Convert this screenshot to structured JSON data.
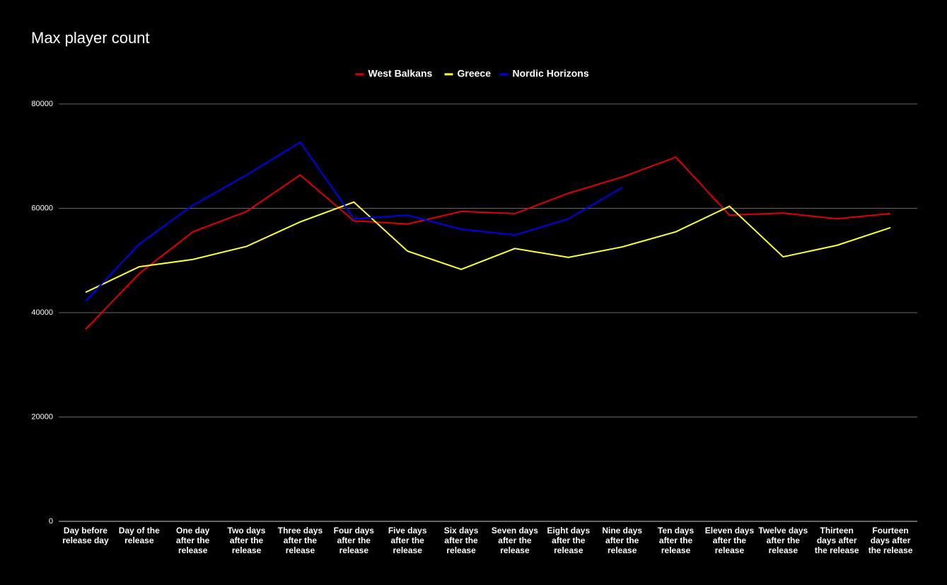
{
  "chart_data": {
    "type": "line",
    "title": "Max player count",
    "categories": [
      "Day before release day",
      "Day of the release",
      "One day after the release",
      "Two days after the release",
      "Three days after the release",
      "Four days after the release",
      "Five days after the release",
      "Six days after the release",
      "Seven days after the release",
      "Eight days after the release",
      "Nine days after the release",
      "Ten days after the release",
      "Eleven days after the release",
      "Twelve days after the release",
      "Thirteen days after the release",
      "Fourteen days after the release"
    ],
    "series": [
      {
        "name": "West Balkans",
        "color": "#e00000",
        "values": [
          36800,
          47500,
          55500,
          59400,
          66400,
          57600,
          57000,
          59400,
          59000,
          62900,
          66000,
          69800,
          58700,
          59100,
          58000,
          59000
        ]
      },
      {
        "name": "Greece",
        "color": "#ffff33",
        "values": [
          43900,
          48800,
          50200,
          52700,
          57400,
          61200,
          51800,
          48300,
          52300,
          50600,
          52600,
          55500,
          60400,
          50700,
          52900,
          56300
        ]
      },
      {
        "name": "Nordic Horizons",
        "color": "#0000ee",
        "values": [
          42200,
          53200,
          60600,
          66400,
          72700,
          58000,
          58700,
          56000,
          54900,
          58000,
          64000,
          null,
          null,
          null,
          null,
          null
        ]
      }
    ],
    "ylim": [
      0,
      80000
    ],
    "yticks": [
      0,
      20000,
      40000,
      60000,
      80000
    ],
    "grid": true,
    "legend": "top"
  }
}
